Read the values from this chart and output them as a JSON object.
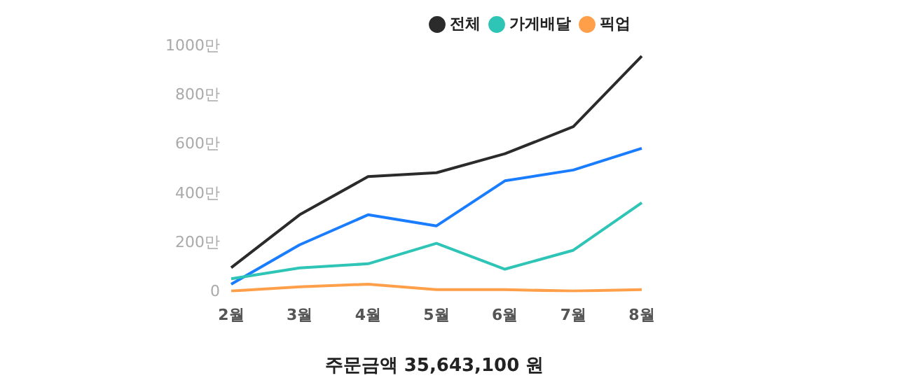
{
  "chart_data": {
    "type": "line",
    "categories": [
      "2월",
      "3월",
      "4월",
      "5월",
      "6월",
      "7월",
      "8월"
    ],
    "series": [
      {
        "name": "전체",
        "color": "#2b2b2b",
        "values": [
          100,
          315,
          470,
          486,
          563,
          673,
          960
        ]
      },
      {
        "name": "가게배달",
        "color": "#2ec4b6",
        "values": [
          55,
          99,
          116,
          199,
          94,
          171,
          364
        ]
      },
      {
        "name": "픽업",
        "color": "#ff9f4a",
        "values": [
          5,
          22,
          33,
          11,
          11,
          5,
          11
        ]
      },
      {
        "color": "#1a7cff",
        "values": [
          33,
          193,
          315,
          270,
          453,
          497,
          585
        ]
      }
    ],
    "ylim": [
      0,
      1000
    ],
    "yticks": [
      {
        "value": 0,
        "label": "0"
      },
      {
        "value": 200,
        "label": "200만"
      },
      {
        "value": 400,
        "label": "400만"
      },
      {
        "value": 600,
        "label": "600만"
      },
      {
        "value": 800,
        "label": "800만"
      },
      {
        "value": 1000,
        "label": "1000만"
      }
    ],
    "grid": false,
    "legend": "top right",
    "marker": "none",
    "line_style": "solid",
    "annotations": [
      "주문금액 35,643,100 원"
    ]
  }
}
